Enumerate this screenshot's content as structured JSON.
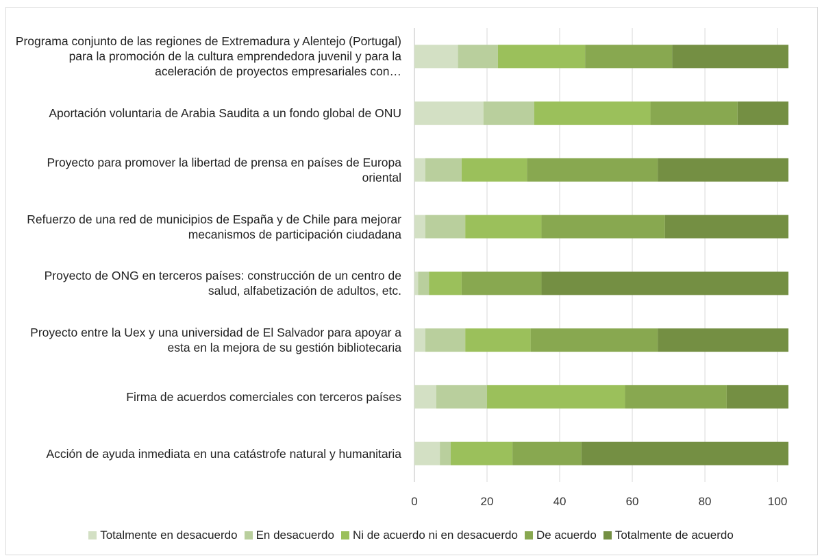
{
  "chart_data": {
    "type": "stacked-barh",
    "categories": [
      "Programa conjunto de las regiones de Extremadura y Alentejo (Portugal) para la promoción de la cultura emprendedora juvenil y para la aceleración de proyectos empresariales con…",
      "Aportación voluntaria de Arabia Saudita a un fondo global de ONU",
      "Proyecto para promover la libertad de prensa en países de Europa oriental",
      "Refuerzo de una red de municipios de España y de Chile para mejorar mecanismos de participación ciudadana",
      "Proyecto de ONG en terceros países: construcción de un centro de salud, alfabetización de adultos, etc.",
      "Proyecto entre la Uex y una universidad de El Salvador para apoyar a esta en la mejora de su gestión bibliotecaria",
      "Firma de acuerdos comerciales con terceros países",
      "Acción de ayuda inmediata en una catástrofe natural y humanitaria"
    ],
    "series": [
      {
        "name": "Totalmente en desacuerdo",
        "color": "#d3e0c4",
        "values": [
          12,
          19,
          3,
          3,
          1,
          3,
          6,
          7
        ]
      },
      {
        "name": "En desacuerdo",
        "color": "#b9cf9d",
        "values": [
          11,
          14,
          10,
          11,
          3,
          11,
          14,
          3
        ]
      },
      {
        "name": "Ni de acuerdo ni en desacuerdo",
        "color": "#9bc05b",
        "values": [
          24,
          32,
          18,
          21,
          9,
          18,
          38,
          17
        ]
      },
      {
        "name": "De acuerdo",
        "color": "#88a850",
        "values": [
          24,
          24,
          36,
          34,
          22,
          35,
          28,
          19
        ]
      },
      {
        "name": "Totalmente de acuerdo",
        "color": "#748f43",
        "values": [
          32,
          14,
          36,
          34,
          68,
          36,
          17,
          57
        ]
      }
    ],
    "xlim": [
      0,
      103
    ],
    "xticks": [
      0,
      20,
      40,
      60,
      80,
      100
    ],
    "grid": true,
    "legend": "bottom"
  }
}
